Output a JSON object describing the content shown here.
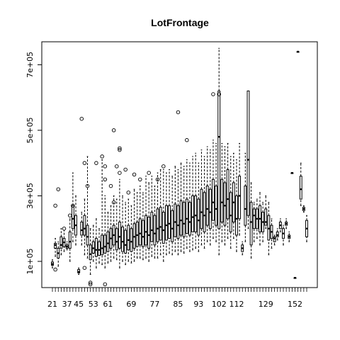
{
  "chart_data": {
    "type": "boxplot",
    "title": "LotFrontage",
    "xlabel": "",
    "ylabel": "",
    "grid": false,
    "ylim": [
      20000,
      770000
    ],
    "yticks": [
      {
        "value": 100000,
        "label": "1e+05"
      },
      {
        "value": 300000,
        "label": "3e+05"
      },
      {
        "value": 500000,
        "label": "5e+05"
      },
      {
        "value": 700000,
        "label": "7e+05"
      }
    ],
    "x_tick_labels": [
      "21",
      "37",
      "45",
      "53",
      "61",
      "69",
      "77",
      "85",
      "93",
      "102",
      "112",
      "129",
      "152"
    ],
    "groups": [
      {
        "x": "21",
        "min": 80000,
        "q1": 88000,
        "median": 92000,
        "q3": 98000,
        "max": 105000,
        "outliers": []
      },
      {
        "x": "24",
        "min": 115000,
        "q1": 140000,
        "median": 150000,
        "q3": 155000,
        "max": 170000,
        "outliers": [
          75000,
          270000
        ]
      },
      {
        "x": "30",
        "min": 85000,
        "q1": 110000,
        "median": 125000,
        "q3": 140000,
        "max": 160000,
        "outliers": [
          320000
        ]
      },
      {
        "x": "34",
        "min": 120000,
        "q1": 140000,
        "median": 150000,
        "q3": 175000,
        "max": 200000,
        "outliers": []
      },
      {
        "x": "35",
        "min": 130000,
        "q1": 145000,
        "median": 158000,
        "q3": 170000,
        "max": 195000,
        "outliers": [
          200000
        ]
      },
      {
        "x": "37",
        "min": 135000,
        "q1": 140000,
        "median": 145000,
        "q3": 150000,
        "max": 160000,
        "outliers": []
      },
      {
        "x": "40",
        "min": 100000,
        "q1": 140000,
        "median": 160000,
        "q3": 190000,
        "max": 230000,
        "outliers": [
          240000
        ]
      },
      {
        "x": "42",
        "min": 160000,
        "q1": 200000,
        "median": 230000,
        "q3": 270000,
        "max": 370000,
        "outliers": [
          270000
        ]
      },
      {
        "x": "44",
        "min": 150000,
        "q1": 180000,
        "median": 210000,
        "q3": 240000,
        "max": 300000,
        "outliers": []
      },
      {
        "x": "45",
        "min": 60000,
        "q1": 65000,
        "median": 68000,
        "q3": 75000,
        "max": 80000,
        "outliers": []
      },
      {
        "x": "47",
        "min": 150000,
        "q1": 180000,
        "median": 195000,
        "q3": 220000,
        "max": 250000,
        "outliers": [
          535000
        ]
      },
      {
        "x": "50",
        "min": 120000,
        "q1": 180000,
        "median": 200000,
        "q3": 240000,
        "max": 290000,
        "outliers": [
          400000,
          80000
        ]
      },
      {
        "x": "51",
        "min": 110000,
        "q1": 150000,
        "median": 175000,
        "q3": 210000,
        "max": 420000,
        "outliers": [
          330000
        ]
      },
      {
        "x": "52",
        "min": 60000,
        "q1": 105000,
        "median": 122000,
        "q3": 150000,
        "max": 200000,
        "outliers": [
          35000,
          30000
        ]
      },
      {
        "x": "53",
        "min": 100000,
        "q1": 125000,
        "median": 140000,
        "q3": 160000,
        "max": 210000,
        "outliers": []
      },
      {
        "x": "55",
        "min": 80000,
        "q1": 115000,
        "median": 135000,
        "q3": 170000,
        "max": 230000,
        "outliers": [
          400000
        ]
      },
      {
        "x": "57",
        "min": 95000,
        "q1": 118000,
        "median": 135000,
        "q3": 160000,
        "max": 200000,
        "outliers": []
      },
      {
        "x": "59",
        "min": 90000,
        "q1": 120000,
        "median": 140000,
        "q3": 180000,
        "max": 410000,
        "outliers": [
          420000
        ]
      },
      {
        "x": "60",
        "min": 80000,
        "q1": 125000,
        "median": 145000,
        "q3": 180000,
        "max": 300000,
        "outliers": [
          390000,
          350000,
          30000
        ]
      },
      {
        "x": "61",
        "min": 95000,
        "q1": 130000,
        "median": 155000,
        "q3": 190000,
        "max": 250000,
        "outliers": []
      },
      {
        "x": "62",
        "min": 100000,
        "q1": 140000,
        "median": 170000,
        "q3": 200000,
        "max": 270000,
        "outliers": [
          330000
        ]
      },
      {
        "x": "63",
        "min": 110000,
        "q1": 150000,
        "median": 180000,
        "q3": 210000,
        "max": 300000,
        "outliers": [
          500000,
          280000
        ]
      },
      {
        "x": "64",
        "min": 105000,
        "q1": 135000,
        "median": 160000,
        "q3": 200000,
        "max": 290000,
        "outliers": [
          390000
        ]
      },
      {
        "x": "65",
        "min": 80000,
        "q1": 140000,
        "median": 175000,
        "q3": 220000,
        "max": 350000,
        "outliers": [
          440000,
          445000,
          370000
        ]
      },
      {
        "x": "66",
        "min": 100000,
        "q1": 130000,
        "median": 160000,
        "q3": 205000,
        "max": 300000,
        "outliers": []
      },
      {
        "x": "67",
        "min": 90000,
        "q1": 125000,
        "median": 150000,
        "q3": 195000,
        "max": 280000,
        "outliers": [
          380000
        ]
      },
      {
        "x": "68",
        "min": 100000,
        "q1": 135000,
        "median": 165000,
        "q3": 210000,
        "max": 290000,
        "outliers": [
          310000
        ]
      },
      {
        "x": "69",
        "min": 95000,
        "q1": 130000,
        "median": 160000,
        "q3": 200000,
        "max": 270000,
        "outliers": []
      },
      {
        "x": "70",
        "min": 100000,
        "q1": 140000,
        "median": 175000,
        "q3": 215000,
        "max": 320000,
        "outliers": [
          365000
        ]
      },
      {
        "x": "71",
        "min": 110000,
        "q1": 145000,
        "median": 180000,
        "q3": 220000,
        "max": 310000,
        "outliers": []
      },
      {
        "x": "72",
        "min": 110000,
        "q1": 150000,
        "median": 185000,
        "q3": 230000,
        "max": 330000,
        "outliers": [
          350000
        ]
      },
      {
        "x": "73",
        "min": 105000,
        "q1": 145000,
        "median": 175000,
        "q3": 225000,
        "max": 310000,
        "outliers": []
      },
      {
        "x": "74",
        "min": 110000,
        "q1": 150000,
        "median": 190000,
        "q3": 240000,
        "max": 360000,
        "outliers": []
      },
      {
        "x": "75",
        "min": 100000,
        "q1": 140000,
        "median": 180000,
        "q3": 235000,
        "max": 340000,
        "outliers": [
          370000
        ]
      },
      {
        "x": "76",
        "min": 115000,
        "q1": 160000,
        "median": 195000,
        "q3": 250000,
        "max": 360000,
        "outliers": []
      },
      {
        "x": "77",
        "min": 110000,
        "q1": 150000,
        "median": 185000,
        "q3": 240000,
        "max": 330000,
        "outliers": []
      },
      {
        "x": "78",
        "min": 110000,
        "q1": 160000,
        "median": 200000,
        "q3": 260000,
        "max": 370000,
        "outliers": [
          350000
        ]
      },
      {
        "x": "79",
        "min": 120000,
        "q1": 165000,
        "median": 205000,
        "q3": 265000,
        "max": 380000,
        "outliers": []
      },
      {
        "x": "80",
        "min": 100000,
        "q1": 155000,
        "median": 195000,
        "q3": 250000,
        "max": 380000,
        "outliers": [
          390000
        ]
      },
      {
        "x": "81",
        "min": 120000,
        "q1": 165000,
        "median": 210000,
        "q3": 270000,
        "max": 370000,
        "outliers": []
      },
      {
        "x": "82",
        "min": 125000,
        "q1": 170000,
        "median": 215000,
        "q3": 270000,
        "max": 380000,
        "outliers": []
      },
      {
        "x": "83",
        "min": 120000,
        "q1": 160000,
        "median": 200000,
        "q3": 255000,
        "max": 360000,
        "outliers": []
      },
      {
        "x": "84",
        "min": 130000,
        "q1": 175000,
        "median": 220000,
        "q3": 275000,
        "max": 390000,
        "outliers": []
      },
      {
        "x": "85",
        "min": 120000,
        "q1": 170000,
        "median": 210000,
        "q3": 270000,
        "max": 380000,
        "outliers": [
          555000
        ]
      },
      {
        "x": "86",
        "min": 130000,
        "q1": 180000,
        "median": 225000,
        "q3": 285000,
        "max": 400000,
        "outliers": []
      },
      {
        "x": "88",
        "min": 125000,
        "q1": 175000,
        "median": 215000,
        "q3": 280000,
        "max": 390000,
        "outliers": []
      },
      {
        "x": "89",
        "min": 140000,
        "q1": 185000,
        "median": 230000,
        "q3": 290000,
        "max": 410000,
        "outliers": [
          470000
        ]
      },
      {
        "x": "90",
        "min": 130000,
        "q1": 180000,
        "median": 220000,
        "q3": 280000,
        "max": 400000,
        "outliers": []
      },
      {
        "x": "91",
        "min": 135000,
        "q1": 190000,
        "median": 235000,
        "q3": 300000,
        "max": 420000,
        "outliers": []
      },
      {
        "x": "92",
        "min": 140000,
        "q1": 190000,
        "median": 240000,
        "q3": 300000,
        "max": 430000,
        "outliers": []
      },
      {
        "x": "93",
        "min": 130000,
        "q1": 180000,
        "median": 225000,
        "q3": 290000,
        "max": 400000,
        "outliers": []
      },
      {
        "x": "94",
        "min": 150000,
        "q1": 200000,
        "median": 250000,
        "q3": 320000,
        "max": 440000,
        "outliers": []
      },
      {
        "x": "95",
        "min": 140000,
        "q1": 190000,
        "median": 240000,
        "q3": 310000,
        "max": 420000,
        "outliers": []
      },
      {
        "x": "96",
        "min": 160000,
        "q1": 210000,
        "median": 260000,
        "q3": 330000,
        "max": 450000,
        "outliers": []
      },
      {
        "x": "98",
        "min": 150000,
        "q1": 200000,
        "median": 250000,
        "q3": 320000,
        "max": 440000,
        "outliers": []
      },
      {
        "x": "99",
        "min": 170000,
        "q1": 225000,
        "median": 280000,
        "q3": 350000,
        "max": 470000,
        "outliers": [
          610000
        ]
      },
      {
        "x": "100",
        "min": 160000,
        "q1": 210000,
        "median": 260000,
        "q3": 330000,
        "max": 460000,
        "outliers": []
      },
      {
        "x": "102",
        "min": 120000,
        "q1": 200000,
        "median": 480000,
        "q3": 620000,
        "max": 750000,
        "outliers": [
          610000
        ]
      },
      {
        "x": "103",
        "min": 160000,
        "q1": 220000,
        "median": 280000,
        "q3": 350000,
        "max": 460000,
        "outliers": []
      },
      {
        "x": "105",
        "min": 150000,
        "q1": 210000,
        "median": 270000,
        "q3": 340000,
        "max": 450000,
        "outliers": []
      },
      {
        "x": "107",
        "min": 170000,
        "q1": 230000,
        "median": 290000,
        "q3": 380000,
        "max": 460000,
        "outliers": []
      },
      {
        "x": "108",
        "min": 140000,
        "q1": 190000,
        "median": 240000,
        "q3": 310000,
        "max": 420000,
        "outliers": []
      },
      {
        "x": "110",
        "min": 170000,
        "q1": 220000,
        "median": 280000,
        "q3": 340000,
        "max": 430000,
        "outliers": []
      },
      {
        "x": "112",
        "min": 130000,
        "q1": 180000,
        "median": 230000,
        "q3": 300000,
        "max": 410000,
        "outliers": []
      },
      {
        "x": "114",
        "min": 180000,
        "q1": 230000,
        "median": 300000,
        "q3": 360000,
        "max": 460000,
        "outliers": []
      },
      {
        "x": "116",
        "min": 120000,
        "q1": 130000,
        "median": 140000,
        "q3": 150000,
        "max": 160000,
        "outliers": []
      },
      {
        "x": "118",
        "min": 160000,
        "q1": 210000,
        "median": 260000,
        "q3": 330000,
        "max": 430000,
        "outliers": []
      },
      {
        "x": "120",
        "min": 200000,
        "q1": 240000,
        "median": 410000,
        "q3": 620000,
        "max": 620000,
        "outliers": []
      },
      {
        "x": "121",
        "min": 110000,
        "q1": 150000,
        "median": 220000,
        "q3": 280000,
        "max": 340000,
        "outliers": []
      },
      {
        "x": "122",
        "min": 160000,
        "q1": 200000,
        "median": 240000,
        "q3": 260000,
        "max": 280000,
        "outliers": []
      },
      {
        "x": "124",
        "min": 170000,
        "q1": 200000,
        "median": 230000,
        "q3": 260000,
        "max": 290000,
        "outliers": []
      },
      {
        "x": "126",
        "min": 150000,
        "q1": 190000,
        "median": 230000,
        "q3": 270000,
        "max": 310000,
        "outliers": []
      },
      {
        "x": "128",
        "min": 160000,
        "q1": 190000,
        "median": 220000,
        "q3": 250000,
        "max": 280000,
        "outliers": []
      },
      {
        "x": "129",
        "min": 200000,
        "q1": 210000,
        "median": 220000,
        "q3": 260000,
        "max": 300000,
        "outliers": []
      },
      {
        "x": "130",
        "min": 120000,
        "q1": 165000,
        "median": 200000,
        "q3": 240000,
        "max": 280000,
        "outliers": []
      },
      {
        "x": "134",
        "min": 140000,
        "q1": 170000,
        "median": 190000,
        "q3": 210000,
        "max": 230000,
        "outliers": []
      },
      {
        "x": "137",
        "min": 150000,
        "q1": 160000,
        "median": 170000,
        "q3": 175000,
        "max": 180000,
        "outliers": []
      },
      {
        "x": "138",
        "min": 165000,
        "q1": 175000,
        "median": 180000,
        "q3": 190000,
        "max": 200000,
        "outliers": []
      },
      {
        "x": "140",
        "min": 190000,
        "q1": 200000,
        "median": 210000,
        "q3": 220000,
        "max": 230000,
        "outliers": []
      },
      {
        "x": "141",
        "min": 150000,
        "q1": 170000,
        "median": 185000,
        "q3": 200000,
        "max": 210000,
        "outliers": []
      },
      {
        "x": "144",
        "min": 200000,
        "q1": 210000,
        "median": 215000,
        "q3": 220000,
        "max": 230000,
        "outliers": []
      },
      {
        "x": "149",
        "min": 160000,
        "q1": 170000,
        "median": 175000,
        "q3": 180000,
        "max": 190000,
        "outliers": []
      },
      {
        "x": "150",
        "min": 370000,
        "q1": 370000,
        "median": 370000,
        "q3": 370000,
        "max": 370000,
        "outliers": []
      },
      {
        "x": "152",
        "min": 50000,
        "q1": 50000,
        "median": 50000,
        "q3": 50000,
        "max": 50000,
        "outliers": []
      },
      {
        "x": "153",
        "min": 740000,
        "q1": 740000,
        "median": 740000,
        "q3": 740000,
        "max": 740000,
        "outliers": []
      },
      {
        "x": "160",
        "min": 270000,
        "q1": 290000,
        "median": 320000,
        "q3": 360000,
        "max": 400000,
        "outliers": []
      },
      {
        "x": "168",
        "min": 250000,
        "q1": 255000,
        "median": 260000,
        "q3": 265000,
        "max": 270000,
        "outliers": []
      },
      {
        "x": "174",
        "min": 160000,
        "q1": 175000,
        "median": 200000,
        "q3": 225000,
        "max": 240000,
        "outliers": []
      }
    ]
  }
}
